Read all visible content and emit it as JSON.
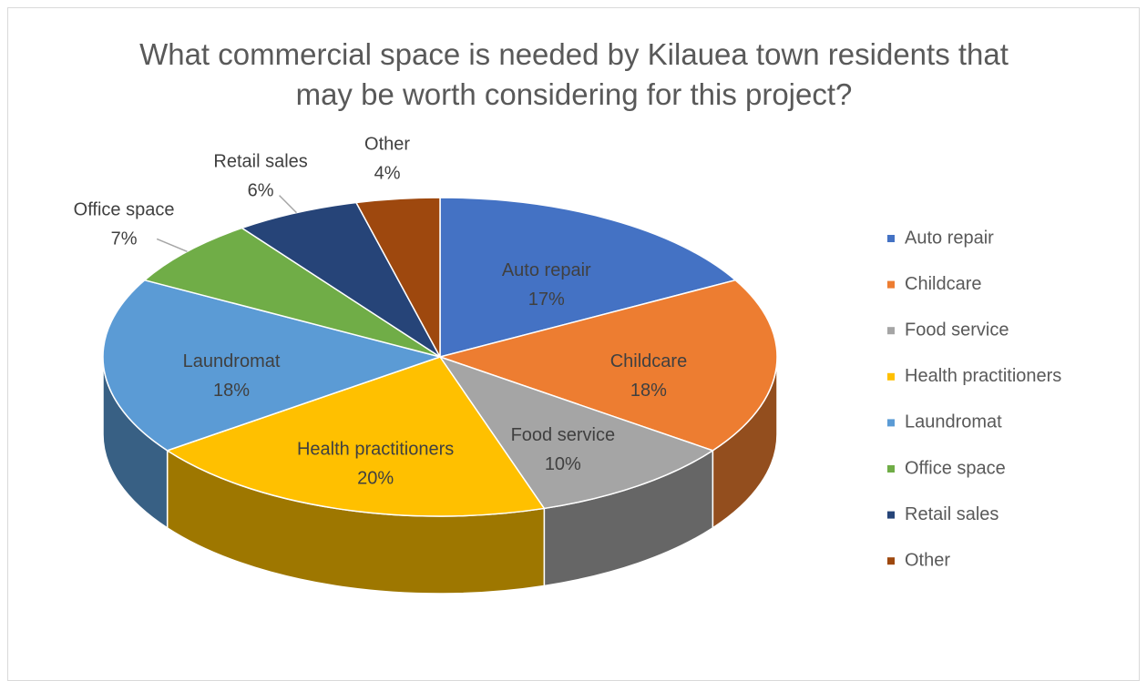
{
  "chart_data": {
    "type": "pie3d",
    "title": "What commercial space is needed by Kilauea town residents that may be worth considering for this project?",
    "categories": [
      "Auto repair",
      "Childcare",
      "Food service",
      "Health practitioners",
      "Laundromat",
      "Office space",
      "Retail sales",
      "Other"
    ],
    "values": [
      17,
      18,
      10,
      20,
      18,
      7,
      6,
      4
    ],
    "value_labels": [
      "17%",
      "18%",
      "10%",
      "20%",
      "18%",
      "7%",
      "6%",
      "4%"
    ],
    "colors": [
      "#4472c4",
      "#ed7d31",
      "#a5a5a5",
      "#ffc000",
      "#5b9bd5",
      "#70ad47",
      "#264478",
      "#9e480e"
    ],
    "legend": "right"
  }
}
